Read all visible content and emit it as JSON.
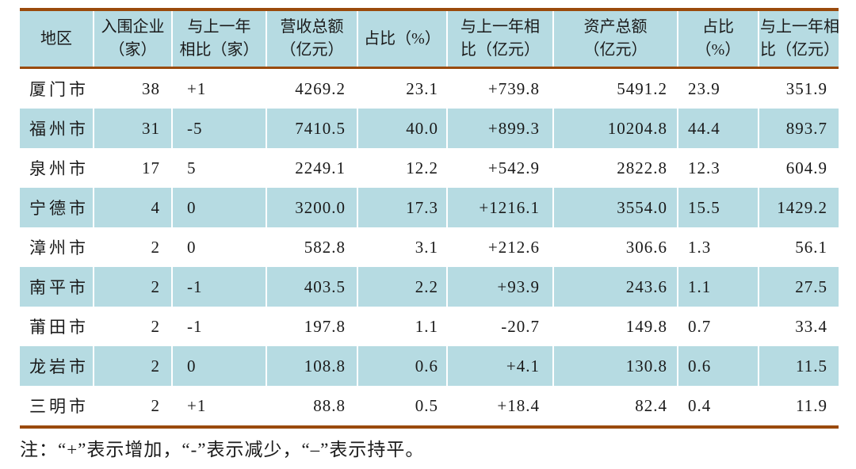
{
  "table": {
    "columns": [
      {
        "id": "region",
        "lines": [
          "地区"
        ]
      },
      {
        "id": "enterprises",
        "lines": [
          "入围企业",
          "（家）"
        ]
      },
      {
        "id": "enterprises-yoy",
        "lines": [
          "与上一年",
          "相比（家）"
        ]
      },
      {
        "id": "revenue-total",
        "lines": [
          "营收总额",
          "（亿元）"
        ]
      },
      {
        "id": "revenue-share",
        "lines": [
          "占比（%）"
        ]
      },
      {
        "id": "revenue-yoy",
        "lines": [
          "与上一年相",
          "比（亿元）"
        ]
      },
      {
        "id": "assets-total",
        "lines": [
          "资产总额",
          "（亿元）"
        ]
      },
      {
        "id": "assets-share",
        "lines": [
          "占比",
          "（%）"
        ]
      },
      {
        "id": "assets-yoy",
        "lines": [
          "与上一年相",
          "比（亿元）"
        ]
      }
    ],
    "rows": [
      [
        "厦门市",
        "38",
        "+1",
        "4269.2",
        "23.1",
        "+739.8",
        "5491.2",
        "23.9",
        "351.9"
      ],
      [
        "福州市",
        "31",
        "-5",
        "7410.5",
        "40.0",
        "+899.3",
        "10204.8",
        "44.4",
        "893.7"
      ],
      [
        "泉州市",
        "17",
        "5",
        "2249.1",
        "12.2",
        "+542.9",
        "2822.8",
        "12.3",
        "604.9"
      ],
      [
        "宁德市",
        "4",
        "0",
        "3200.0",
        "17.3",
        "+1216.1",
        "3554.0",
        "15.5",
        "1429.2"
      ],
      [
        "漳州市",
        "2",
        "0",
        "582.8",
        "3.1",
        "+212.6",
        "306.6",
        "1.3",
        "56.1"
      ],
      [
        "南平市",
        "2",
        "-1",
        "403.5",
        "2.2",
        "+93.9",
        "243.6",
        "1.1",
        "27.5"
      ],
      [
        "莆田市",
        "2",
        "-1",
        "197.8",
        "1.1",
        "-20.7",
        "149.8",
        "0.7",
        "33.4"
      ],
      [
        "龙岩市",
        "2",
        "0",
        "108.8",
        "0.6",
        "+4.1",
        "130.8",
        "0.6",
        "11.5"
      ],
      [
        "三明市",
        "2",
        "+1",
        "88.8",
        "0.5",
        "+18.4",
        "82.4",
        "0.4",
        "11.9"
      ]
    ]
  },
  "note": "注：“+”表示增加，“-”表示减少，“–”表示持平。",
  "colors": {
    "row_highlight": "#b6dbe2",
    "rule_brown": "#9a4a0c",
    "text": "#1a1a1a",
    "background": "#ffffff"
  }
}
